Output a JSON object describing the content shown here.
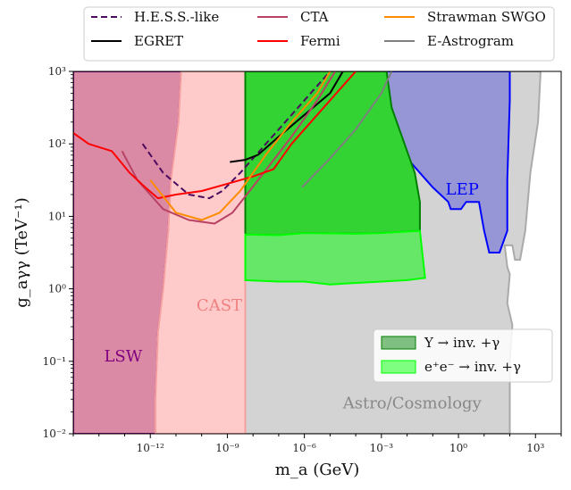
{
  "chart_data": {
    "type": "line",
    "xlabel": "m_a (GeV)",
    "ylabel": "g_aγγ (TeV⁻¹)",
    "xlim_log10": [
      -15,
      4
    ],
    "ylim_log10": [
      -2,
      3
    ],
    "x_ticks": [
      {
        "exp": -12,
        "label": "10⁻¹²"
      },
      {
        "exp": -9,
        "label": "10⁻⁹"
      },
      {
        "exp": -6,
        "label": "10⁻⁶"
      },
      {
        "exp": -3,
        "label": "10⁻³"
      },
      {
        "exp": 0,
        "label": "10⁰"
      },
      {
        "exp": 3,
        "label": "10³"
      }
    ],
    "y_ticks": [
      {
        "exp": -2,
        "label": "10⁻²"
      },
      {
        "exp": -1,
        "label": "10⁻¹"
      },
      {
        "exp": 0,
        "label": "10⁰"
      },
      {
        "exp": 1,
        "label": "10¹"
      },
      {
        "exp": 2,
        "label": "10²"
      },
      {
        "exp": 3,
        "label": "10³"
      }
    ],
    "regions": [
      {
        "id": "astro",
        "label": "Astro/Cosmology",
        "fill": "#d3d3d3",
        "edge": "#aaaaaa",
        "label_at": [
          -4.5,
          -1.65
        ],
        "label_color": "#888888",
        "points": [
          [
            -9,
            3
          ],
          [
            3.2,
            3
          ],
          [
            3.1,
            2.3
          ],
          [
            2.8,
            1.6
          ],
          [
            2.6,
            0.8
          ],
          [
            2.4,
            0.4
          ],
          [
            2.2,
            0.4
          ],
          [
            2.1,
            0.6
          ],
          [
            1.8,
            0.6
          ],
          [
            1.9,
            0.3
          ],
          [
            2,
            0.2
          ],
          [
            1.9,
            -0.2
          ],
          [
            2.1,
            -0.5
          ],
          [
            2,
            -1
          ],
          [
            2,
            -2
          ],
          [
            -9,
            -2
          ]
        ]
      },
      {
        "id": "lsw",
        "label": "LSW",
        "fill": "#db8aa6",
        "edge": "#800080",
        "label_at": [
          -13.8,
          -1
        ],
        "label_color": "#800080",
        "points": [
          [
            -15,
            3
          ],
          [
            -10.8,
            3
          ],
          [
            -10.9,
            2.3
          ],
          [
            -11.2,
            1.5
          ],
          [
            -11.3,
            0.8
          ],
          [
            -11.5,
            0
          ],
          [
            -11.7,
            -0.6
          ],
          [
            -11.8,
            -1.5
          ],
          [
            -11.8,
            -2
          ],
          [
            -15,
            -2
          ]
        ]
      },
      {
        "id": "cast",
        "label": "CAST",
        "fill": "#ffcaca",
        "edge": "#f4a0a0",
        "label_at": [
          -10.2,
          -0.3
        ],
        "label_color": "#f08080",
        "points": [
          [
            -10.8,
            3
          ],
          [
            -8.3,
            3
          ],
          [
            -8.3,
            -2
          ],
          [
            -11.8,
            -2
          ],
          [
            -11.8,
            -1.5
          ],
          [
            -11.7,
            -0.6
          ],
          [
            -11.5,
            0
          ],
          [
            -11.3,
            0.8
          ],
          [
            -11.2,
            1.5
          ],
          [
            -10.9,
            2.3
          ]
        ]
      },
      {
        "id": "lep",
        "label": "LEP",
        "fill": "#9696d6",
        "edge": "#0000ff",
        "label_at": [
          -0.5,
          1.3
        ],
        "label_color": "#0000ff",
        "points": [
          [
            -3,
            3
          ],
          [
            2,
            3
          ],
          [
            2,
            2.6
          ],
          [
            1.9,
            1.5
          ],
          [
            1.9,
            0.8
          ],
          [
            1.6,
            0.5
          ],
          [
            1.2,
            0.5
          ],
          [
            1,
            0.8
          ],
          [
            0.8,
            1.2
          ],
          [
            0.3,
            1.2
          ],
          [
            0.1,
            1.1
          ],
          [
            -0.3,
            1.1
          ],
          [
            -0.4,
            1.2
          ],
          [
            -1,
            1.4
          ],
          [
            -1.5,
            1.6
          ],
          [
            -2,
            1.8
          ],
          [
            -2.5,
            2
          ],
          [
            -2.8,
            2.3
          ],
          [
            -3,
            2.6
          ]
        ]
      },
      {
        "id": "upsilon",
        "label": "Υ → inv. +γ",
        "fill": "#33d333",
        "edge": "#008000",
        "points": [
          [
            -8.3,
            3
          ],
          [
            -2.8,
            3
          ],
          [
            -2.6,
            2.5
          ],
          [
            -2.2,
            2.1
          ],
          [
            -1.7,
            1.6
          ],
          [
            -1.5,
            1.2
          ],
          [
            -1.5,
            0.8
          ],
          [
            -3,
            0.77
          ],
          [
            -4,
            0.76
          ],
          [
            -6,
            0.77
          ],
          [
            -7,
            0.74
          ],
          [
            -8.3,
            0.75
          ]
        ]
      },
      {
        "id": "ee",
        "label": "e⁺e⁻ → inv. +γ",
        "fill": "#67e767",
        "edge": "#00ff00",
        "points": [
          [
            -8.3,
            0.75
          ],
          [
            -7,
            0.74
          ],
          [
            -6,
            0.77
          ],
          [
            -4,
            0.76
          ],
          [
            -3,
            0.77
          ],
          [
            -1.5,
            0.8
          ],
          [
            -1.3,
            0.15
          ],
          [
            -2,
            0.12
          ],
          [
            -3,
            0.1
          ],
          [
            -5,
            0.06
          ],
          [
            -6,
            0.1
          ],
          [
            -7,
            0.1
          ],
          [
            -8.3,
            0.12
          ]
        ]
      }
    ],
    "series": [
      {
        "name": "H.E.S.S.-like",
        "color": "#4b0a5e",
        "dash": true,
        "points": [
          [
            -12.3,
            2
          ],
          [
            -11.5,
            1.6
          ],
          [
            -10.5,
            1.3
          ],
          [
            -9.7,
            1.25
          ],
          [
            -9.2,
            1.35
          ],
          [
            -8.5,
            1.6
          ],
          [
            -7.5,
            2
          ],
          [
            -6.5,
            2.4
          ],
          [
            -5.5,
            2.8
          ],
          [
            -5,
            3
          ]
        ]
      },
      {
        "name": "EGRET",
        "color": "#000000",
        "dash": false,
        "points": [
          [
            -8.9,
            1.75
          ],
          [
            -8.3,
            1.78
          ],
          [
            -7.8,
            1.85
          ],
          [
            -7,
            2.1
          ],
          [
            -6,
            2.4
          ],
          [
            -5,
            2.7
          ],
          [
            -4.5,
            3
          ]
        ]
      },
      {
        "name": "CTA",
        "color": "#b84264",
        "dash": false,
        "points": [
          [
            -13.1,
            1.9
          ],
          [
            -12.5,
            1.5
          ],
          [
            -11.5,
            1.1
          ],
          [
            -10.5,
            0.95
          ],
          [
            -9.5,
            0.9
          ],
          [
            -8.8,
            1.05
          ],
          [
            -7.8,
            1.5
          ],
          [
            -6.5,
            2.1
          ],
          [
            -5.5,
            2.6
          ],
          [
            -4.8,
            3
          ]
        ]
      },
      {
        "name": "Fermi",
        "color": "#ff0000",
        "dash": false,
        "points": [
          [
            -15,
            2.15
          ],
          [
            -14.4,
            2
          ],
          [
            -13.5,
            1.9
          ],
          [
            -12.8,
            1.6
          ],
          [
            -12.2,
            1.4
          ],
          [
            -11.7,
            1.25
          ],
          [
            -11,
            1.3
          ],
          [
            -10,
            1.35
          ],
          [
            -9,
            1.45
          ],
          [
            -8,
            1.55
          ],
          [
            -7.2,
            1.65
          ],
          [
            -6.5,
            2
          ],
          [
            -5.5,
            2.4
          ],
          [
            -4.5,
            2.8
          ],
          [
            -4,
            3
          ]
        ]
      },
      {
        "name": "Strawman SWGO",
        "color": "#ff8c00",
        "dash": false,
        "points": [
          [
            -12,
            1.5
          ],
          [
            -11,
            1.05
          ],
          [
            -10,
            0.95
          ],
          [
            -9.3,
            1.05
          ],
          [
            -8.5,
            1.35
          ],
          [
            -7.5,
            1.85
          ],
          [
            -6.5,
            2.3
          ],
          [
            -5.5,
            2.7
          ],
          [
            -5,
            3
          ]
        ]
      },
      {
        "name": "E-Astrogram",
        "color": "#7f7f7f",
        "dash": false,
        "points": [
          [
            -6.1,
            1.4
          ],
          [
            -5,
            1.8
          ],
          [
            -4,
            2.2
          ],
          [
            -3,
            2.7
          ],
          [
            -2.6,
            3
          ]
        ]
      }
    ],
    "legend_top": [
      "H.E.S.S.-like",
      "CTA",
      "Strawman SWGO",
      "EGRET",
      "Fermi",
      "E-Astrogram"
    ],
    "legend_inner": [
      "Υ → inv. +γ",
      "e⁺e⁻ → inv. +γ"
    ],
    "legend_inner_placement": "lower-right"
  }
}
